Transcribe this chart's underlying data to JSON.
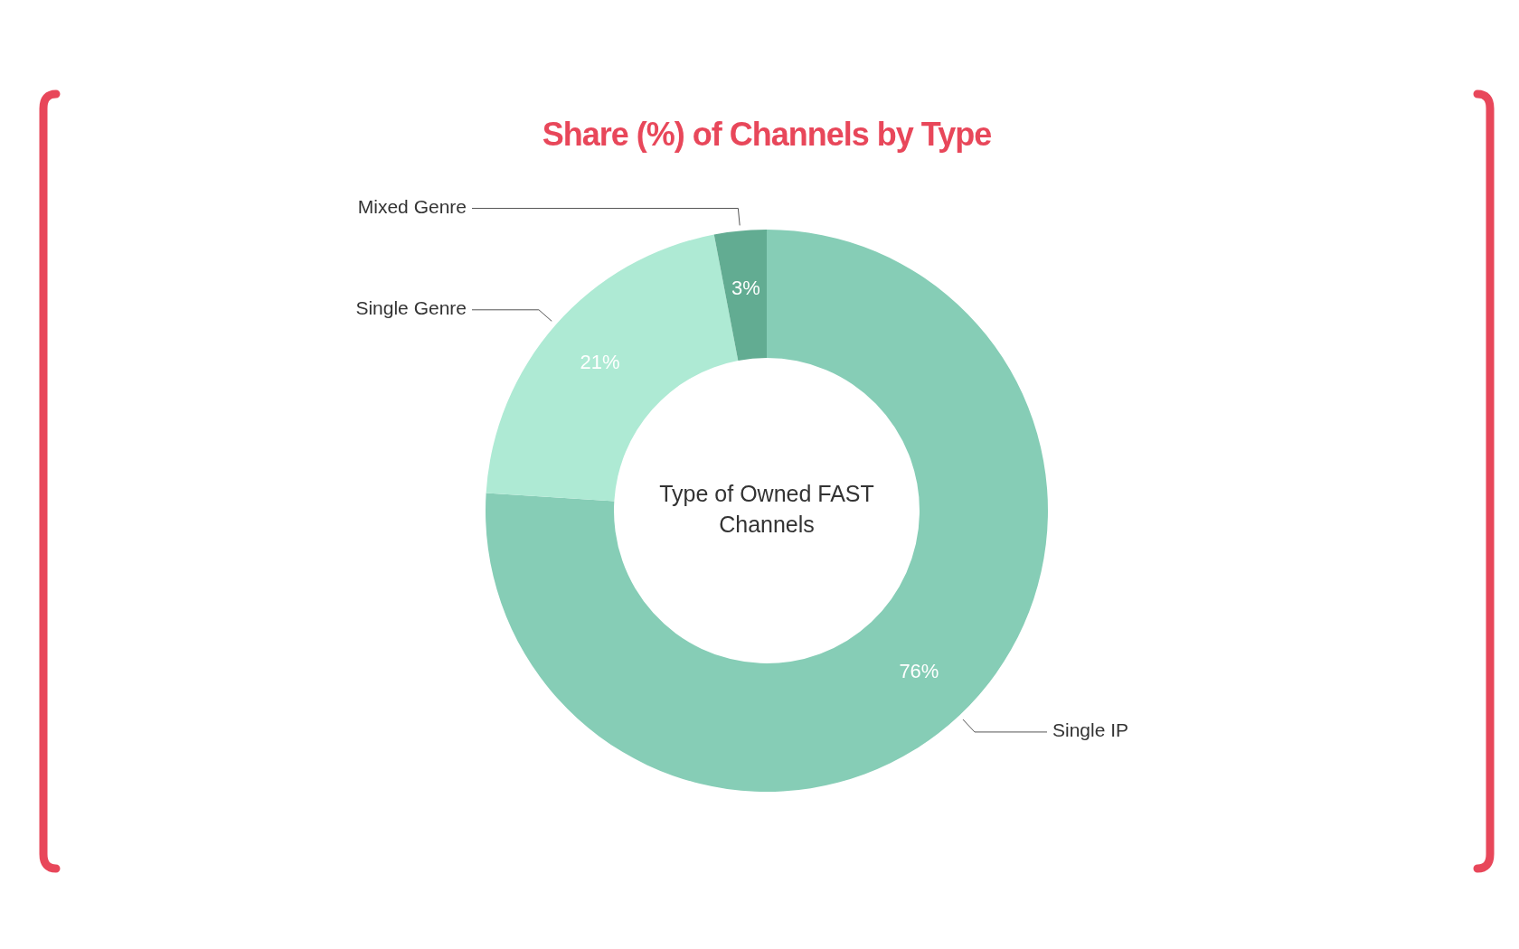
{
  "chart_data": {
    "type": "donut",
    "title": "Share (%) of Channels by Type",
    "categories": [
      "Single IP",
      "Single Genre",
      "Mixed Genre"
    ],
    "values": [
      76,
      21,
      3
    ],
    "colors": [
      "#86cdb6",
      "#aeead4",
      "#62ac92"
    ],
    "value_labels": [
      "76%",
      "21%",
      "3%"
    ],
    "annotations": [
      "Type of Owned FAST Channels"
    ]
  }
}
